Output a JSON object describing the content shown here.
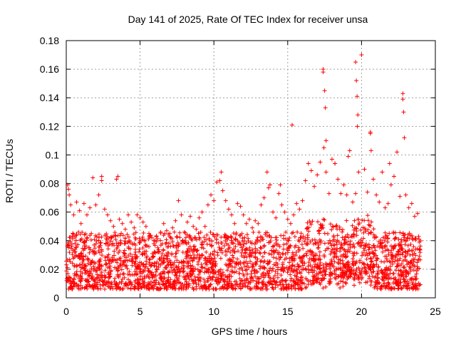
{
  "chart_data": {
    "type": "scatter",
    "title": "Day 141 of 2025, Rate Of TEC Index for receiver unsa",
    "xlabel": "GPS time / hours",
    "ylabel": "ROTI / TECUs",
    "xlim": [
      0,
      25
    ],
    "ylim": [
      0,
      0.18
    ],
    "xticks": [
      0,
      5,
      10,
      15,
      20,
      25
    ],
    "xtick_labels": [
      "0",
      "5",
      "10",
      "15",
      "20",
      "25"
    ],
    "yticks": [
      0,
      0.02,
      0.04,
      0.06,
      0.08,
      0.1,
      0.12,
      0.14,
      0.16,
      0.18
    ],
    "ytick_labels": [
      "0",
      "0.02",
      "0.04",
      "0.06",
      "0.08",
      "0.1",
      "0.12",
      "0.14",
      "0.16",
      "0.18"
    ],
    "grid": true,
    "marker": "+",
    "marker_color": "#ff0000",
    "series": [
      {
        "name": "ROTI",
        "x": [
          0.1,
          0.2,
          0.3,
          0.5,
          0.7,
          0.9,
          1.0,
          1.2,
          1.4,
          1.6,
          1.8,
          2.0,
          2.2,
          2.4,
          2.6,
          2.8,
          3.0,
          3.2,
          3.4,
          3.6,
          3.8,
          4.0,
          4.2,
          4.4,
          4.6,
          4.8,
          5.0,
          5.2,
          5.4,
          5.6,
          5.8,
          6.0,
          6.2,
          6.4,
          6.6,
          6.8,
          7.0,
          7.2,
          7.4,
          7.6,
          7.8,
          8.0,
          8.2,
          8.4,
          8.6,
          8.8,
          9.0,
          9.2,
          9.4,
          9.6,
          9.8,
          10.0,
          10.2,
          10.4,
          10.6,
          10.8,
          11.0,
          11.2,
          11.4,
          11.6,
          11.8,
          12.0,
          12.2,
          12.4,
          12.6,
          12.8,
          13.0,
          13.2,
          13.4,
          13.6,
          13.8,
          14.0,
          14.2,
          14.4,
          14.6,
          14.8,
          15.0,
          15.2,
          15.4,
          15.6,
          15.8,
          16.0,
          16.2,
          16.4,
          16.6,
          16.8,
          17.0,
          17.2,
          17.4,
          17.6,
          17.8,
          18.0,
          18.2,
          18.4,
          18.6,
          18.8,
          19.0,
          19.2,
          19.4,
          19.6,
          19.8,
          20.0,
          20.2,
          20.4,
          20.6,
          20.8,
          21.0,
          21.2,
          21.4,
          21.6,
          21.8,
          22.0,
          22.2,
          22.4,
          22.6,
          22.8,
          23.0,
          23.2,
          23.4,
          23.6,
          23.8,
          0.15,
          2.4,
          3.5,
          10.5,
          13.7,
          14.5,
          15.3,
          17.4,
          17.5,
          17.55,
          17.6,
          18.2,
          19.1,
          19.6,
          19.65,
          19.7,
          19.75,
          20.6,
          20.65,
          21.9,
          22.8,
          22.85,
          22.9,
          17.45,
          19.72
        ],
        "y": [
          0.079,
          0.072,
          0.065,
          0.058,
          0.067,
          0.061,
          0.052,
          0.066,
          0.058,
          0.063,
          0.084,
          0.065,
          0.072,
          0.085,
          0.062,
          0.058,
          0.054,
          0.05,
          0.083,
          0.055,
          0.052,
          0.048,
          0.058,
          0.053,
          0.049,
          0.058,
          0.056,
          0.053,
          0.05,
          0.045,
          0.042,
          0.04,
          0.035,
          0.046,
          0.052,
          0.047,
          0.043,
          0.049,
          0.054,
          0.068,
          0.058,
          0.046,
          0.053,
          0.057,
          0.05,
          0.048,
          0.056,
          0.06,
          0.05,
          0.065,
          0.072,
          0.068,
          0.081,
          0.082,
          0.075,
          0.068,
          0.062,
          0.058,
          0.052,
          0.066,
          0.064,
          0.058,
          0.052,
          0.055,
          0.049,
          0.054,
          0.052,
          0.065,
          0.07,
          0.088,
          0.079,
          0.06,
          0.056,
          0.073,
          0.065,
          0.06,
          0.055,
          0.052,
          0.058,
          0.066,
          0.062,
          0.068,
          0.082,
          0.094,
          0.089,
          0.078,
          0.086,
          0.095,
          0.16,
          0.088,
          0.073,
          0.097,
          0.094,
          0.083,
          0.073,
          0.079,
          0.072,
          0.103,
          0.067,
          0.073,
          0.088,
          0.17,
          0.09,
          0.074,
          0.115,
          0.083,
          0.072,
          0.067,
          0.088,
          0.063,
          0.066,
          0.079,
          0.085,
          0.102,
          0.071,
          0.143,
          0.072,
          0.063,
          0.066,
          0.057,
          0.059,
          0.076,
          0.082,
          0.085,
          0.088,
          0.077,
          0.079,
          0.121,
          0.158,
          0.145,
          0.133,
          0.11,
          0.094,
          0.099,
          0.165,
          0.152,
          0.141,
          0.128,
          0.116,
          0.103,
          0.094,
          0.139,
          0.13,
          0.112,
          0.105,
          0.12
        ]
      }
    ],
    "background_band": "dense red cloud of + markers between ~0.005 and ~0.045 TECU across 0-24 h"
  }
}
